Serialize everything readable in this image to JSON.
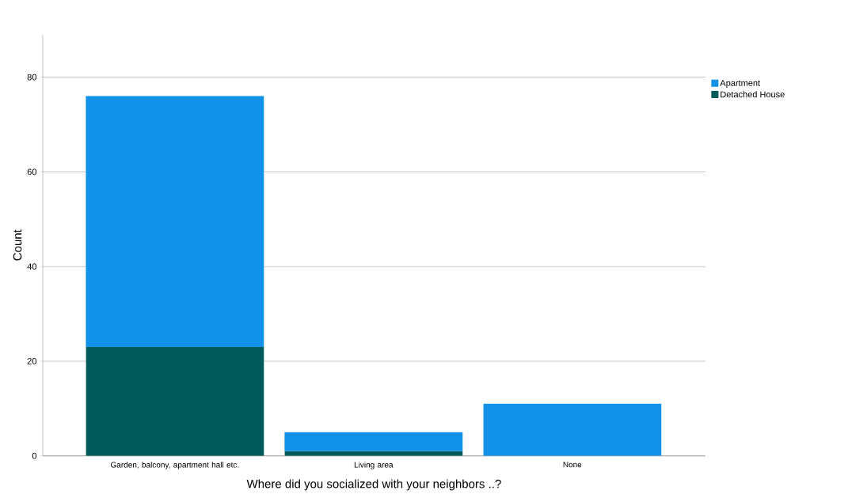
{
  "chart_data": {
    "type": "bar",
    "stacked": true,
    "xlabel": "Where did you socialized with your neighbors ..?",
    "ylabel": "Count",
    "categories": [
      "Garden, balcony, apartment hall etc.",
      "Living area",
      "None"
    ],
    "series": [
      {
        "name": "Detached House",
        "color": "#005a5a",
        "values": [
          23,
          1,
          null
        ]
      },
      {
        "name": "Apartment",
        "color": "#1192e8",
        "values": [
          53,
          4,
          11
        ]
      }
    ],
    "ylim": [
      0,
      89
    ],
    "yticks": [
      0,
      20,
      40,
      60,
      80
    ],
    "grid": "y",
    "legend": "top right"
  }
}
